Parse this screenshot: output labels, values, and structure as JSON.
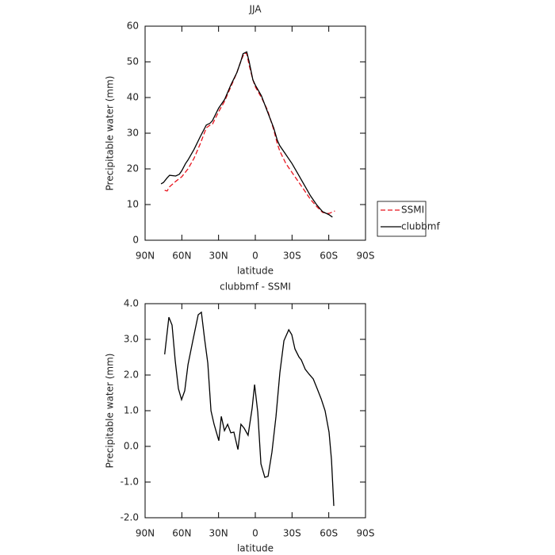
{
  "chart_data": [
    {
      "type": "line",
      "title": "JJA",
      "xlabel": "latitude",
      "ylabel": "Precipitable water (mm)",
      "xlim": [
        90,
        -90
      ],
      "xticks": [
        {
          "value": 90,
          "label": "90N"
        },
        {
          "value": 60,
          "label": "60N"
        },
        {
          "value": 30,
          "label": "30N"
        },
        0,
        {
          "value": -30,
          "label": "30S"
        },
        {
          "value": -60,
          "label": "60S"
        },
        {
          "value": -90,
          "label": "90S"
        }
      ],
      "ylim": [
        0,
        60
      ],
      "yticks": [
        0,
        10,
        20,
        30,
        40,
        50,
        60
      ],
      "legend": "outside right",
      "series": [
        {
          "name": "SSMI",
          "color": "#e8141e",
          "linestyle": "dashed",
          "x": [
            74,
            72,
            70,
            65,
            60,
            55,
            50,
            45,
            40,
            37,
            35,
            30,
            25,
            20,
            15,
            12,
            9,
            7,
            5,
            2,
            0,
            -5,
            -10,
            -15,
            -18,
            -20,
            -25,
            -30,
            -35,
            -40,
            -45,
            -50,
            -55,
            -60,
            -65
          ],
          "values": [
            14,
            13.8,
            15,
            16.5,
            17.8,
            20,
            23,
            27,
            31.5,
            32.3,
            32.5,
            36,
            39,
            43,
            47,
            50,
            52.5,
            52.3,
            49,
            45,
            43,
            40,
            36.5,
            31,
            27,
            25,
            21.5,
            19,
            16.5,
            14,
            11.5,
            9.5,
            7.8,
            7.5,
            8.2
          ]
        },
        {
          "name": "clubbmf",
          "color": "#000000",
          "linestyle": "solid",
          "x": [
            77,
            75,
            72,
            70,
            65,
            62,
            60,
            57,
            55,
            50,
            45,
            40,
            37,
            35,
            30,
            25,
            20,
            15,
            12,
            10,
            7,
            5,
            2,
            0,
            -5,
            -10,
            -15,
            -18,
            -20,
            -25,
            -30,
            -35,
            -40,
            -45,
            -50,
            -55,
            -60,
            -63
          ],
          "values": [
            15.8,
            16.2,
            17.5,
            18.2,
            18,
            18.5,
            19.5,
            21.5,
            22.5,
            25.5,
            29,
            32.3,
            32.8,
            33.5,
            37,
            39.5,
            43.5,
            47,
            50,
            52.3,
            52.8,
            50,
            45,
            43.5,
            40.5,
            36,
            31.5,
            28,
            26.5,
            24,
            21.5,
            18.5,
            15.5,
            12.5,
            10,
            8,
            7.2,
            6.5
          ]
        }
      ]
    },
    {
      "type": "line",
      "title": "clubbmf - SSMI",
      "xlabel": "latitude",
      "ylabel": "Precipitable water (mm)",
      "xlim": [
        90,
        -90
      ],
      "xticks": [
        {
          "value": 90,
          "label": "90N"
        },
        {
          "value": 60,
          "label": "60N"
        },
        {
          "value": 30,
          "label": "30N"
        },
        0,
        {
          "value": -30,
          "label": "30S"
        },
        {
          "value": -60,
          "label": "60S"
        },
        {
          "value": -90,
          "label": "90S"
        }
      ],
      "ylim": [
        -2,
        4
      ],
      "yticks": [
        {
          "value": -2,
          "label": "-2.0"
        },
        {
          "value": -1,
          "label": "-1.0"
        },
        {
          "value": 0,
          "label": "0.0"
        },
        {
          "value": 1,
          "label": "1.0"
        },
        {
          "value": 2,
          "label": "2.0"
        },
        {
          "value": 3,
          "label": "3.0"
        },
        {
          "value": 4,
          "label": "4.0"
        }
      ],
      "series": [
        {
          "color": "#000000",
          "linestyle": "solid",
          "x": [
            74,
            70.6,
            68,
            65.4,
            62.8,
            60.2,
            57.6,
            55,
            51,
            46.6,
            44,
            41.4,
            38.8,
            36.2,
            33.7,
            29.8,
            27.8,
            25.2,
            22.6,
            20,
            17.5,
            14.2,
            11.7,
            9.1,
            5.9,
            2.6,
            0.6,
            -2,
            -4.6,
            -7.8,
            -10.4,
            -13.6,
            -16.9,
            -20.1,
            -23.4,
            -27.3,
            -29.8,
            -32.4,
            -35.6,
            -37.6,
            -40.8,
            -44,
            -47.3,
            -50.5,
            -53.8,
            -57,
            -60.2,
            -62.2,
            -64.1
          ],
          "values": [
            2.58,
            3.62,
            3.4,
            2.4,
            1.62,
            1.31,
            1.56,
            2.29,
            2.96,
            3.69,
            3.76,
            3.0,
            2.33,
            1.0,
            0.62,
            0.16,
            0.84,
            0.44,
            0.62,
            0.38,
            0.4,
            -0.09,
            0.62,
            0.51,
            0.31,
            1.07,
            1.73,
            0.96,
            -0.49,
            -0.87,
            -0.84,
            -0.16,
            0.84,
            2.07,
            2.96,
            3.27,
            3.13,
            2.73,
            2.51,
            2.42,
            2.16,
            2.02,
            1.89,
            1.62,
            1.33,
            1.0,
            0.4,
            -0.38,
            -1.67
          ]
        }
      ]
    }
  ]
}
